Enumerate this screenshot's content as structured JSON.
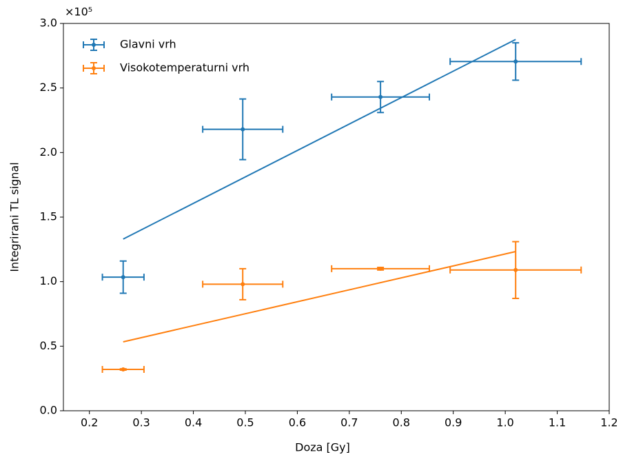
{
  "chart_data": {
    "type": "scatter",
    "xlabel": "Doza [Gy]",
    "ylabel": "Integrirani TL signal",
    "y_offset_label": "×10⁵",
    "xlim": [
      0.15,
      1.2
    ],
    "xticks": [
      0.2,
      0.3,
      0.4,
      0.5,
      0.6,
      0.7,
      0.8,
      0.9,
      {
        "value": 1,
        "label": "1.0"
      },
      1.1,
      1.2
    ],
    "ylim": [
      0,
      3
    ],
    "yticks": [
      {
        "value": 0,
        "label": "0.0"
      },
      0.5,
      {
        "value": 1,
        "label": "1.0"
      },
      1.5,
      {
        "value": 2,
        "label": "2.0"
      },
      2.5,
      {
        "value": 3,
        "label": "3.0"
      }
    ],
    "legend": "upper left",
    "series": [
      {
        "name": "Glavni vrh",
        "color": "#1f77b4",
        "x": [
          0.265,
          0.495,
          0.76,
          1.02
        ],
        "values": [
          1.035,
          2.18,
          2.43,
          2.705
        ],
        "xerr": [
          0.04,
          0.077,
          0.094,
          0.126
        ],
        "yerr": [
          0.125,
          0.235,
          0.12,
          0.145
        ],
        "fit_x": [
          0.265,
          1.02
        ],
        "fit_values": [
          1.33,
          2.876
        ]
      },
      {
        "name": "Visokotemperaturni vrh",
        "color": "#ff7f0e",
        "x": [
          0.265,
          0.495,
          0.76,
          1.02
        ],
        "values": [
          0.32,
          0.98,
          1.1,
          1.09
        ],
        "xerr": [
          0.04,
          0.077,
          0.094,
          0.126
        ],
        "yerr": [
          0.005,
          0.12,
          0.01,
          0.22
        ],
        "fit_x": [
          0.265,
          1.02
        ],
        "fit_values": [
          0.534,
          1.233
        ]
      }
    ]
  }
}
